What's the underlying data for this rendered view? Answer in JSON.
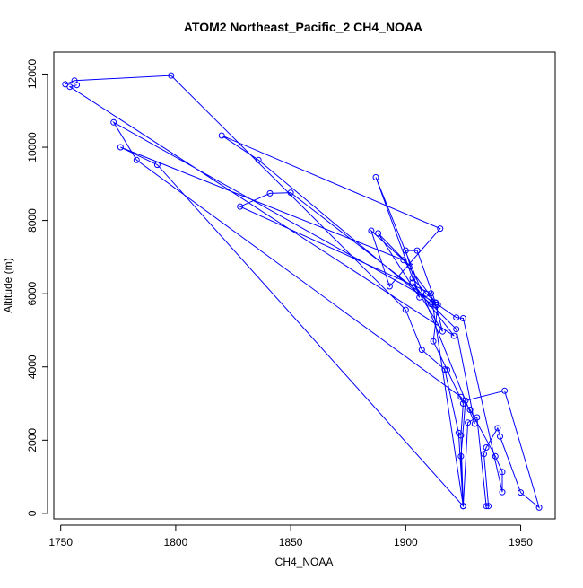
{
  "chart_data": {
    "type": "line",
    "title": "ATOM2 Northeast_Pacific_2 CH4_NOAA",
    "xlabel": "CH4_NOAA",
    "ylabel": "Altitude (m)",
    "xlim": [
      1747,
      1965
    ],
    "ylim": [
      -150,
      12600
    ],
    "x_ticks": [
      1750,
      1800,
      1850,
      1900,
      1950
    ],
    "y_ticks": [
      0,
      2000,
      4000,
      6000,
      8000,
      10000,
      12000
    ],
    "grid": false,
    "legend": "none",
    "series": [
      {
        "color": "#0000ff",
        "marker": "open-circle",
        "points": [
          [
            1752,
            11720
          ],
          [
            1756,
            11820
          ],
          [
            1798,
            11960
          ],
          [
            1900,
            5560
          ],
          [
            1907,
            4470
          ],
          [
            1917,
            3930
          ],
          [
            1923,
            2200
          ],
          [
            1925,
            200
          ],
          [
            1925,
            200
          ],
          [
            1924,
            1560
          ],
          [
            1926,
            3080
          ],
          [
            1943,
            3350
          ],
          [
            1958,
            160
          ],
          [
            1950,
            570
          ],
          [
            1941,
            2100
          ],
          [
            1940,
            2330
          ],
          [
            1935,
            1800
          ],
          [
            1934,
            1620
          ],
          [
            1936,
            200
          ],
          [
            1935,
            200
          ],
          [
            1931,
            2620
          ],
          [
            1927,
            2480
          ],
          [
            1925,
            200
          ],
          [
            1924,
            2130
          ],
          [
            1925,
            3000
          ],
          [
            1918,
            3920
          ],
          [
            1912,
            4700
          ],
          [
            1914,
            5700
          ],
          [
            1922,
            5350
          ],
          [
            1925,
            5330
          ],
          [
            1942,
            580
          ],
          [
            1942,
            1130
          ],
          [
            1939,
            1560
          ],
          [
            1928,
            2830
          ],
          [
            1924,
            3180
          ],
          [
            1783,
            9650
          ],
          [
            1773,
            10680
          ],
          [
            1913,
            5750
          ],
          [
            1905,
            7180
          ],
          [
            1900,
            7180
          ],
          [
            1906,
            5900
          ],
          [
            1888,
            7650
          ],
          [
            1902,
            6750
          ],
          [
            1885,
            7720
          ],
          [
            1893,
            6200
          ],
          [
            1915,
            7780
          ],
          [
            1820,
            10320
          ],
          [
            1836,
            9650
          ],
          [
            1911,
            5720
          ],
          [
            1922,
            5030
          ],
          [
            1930,
            2450
          ],
          [
            1887,
            9180
          ],
          [
            1903,
            6420
          ],
          [
            1909,
            6000
          ],
          [
            1913,
            5760
          ],
          [
            1899,
            6920
          ],
          [
            1776,
            10000
          ],
          [
            1792,
            9520
          ],
          [
            1925,
            200
          ],
          [
            1911,
            6010
          ],
          [
            1828,
            8380
          ],
          [
            1841,
            8740
          ],
          [
            1850,
            8760
          ],
          [
            1913,
            5700
          ],
          [
            1916,
            4970
          ],
          [
            1903,
            6300
          ],
          [
            1921,
            4850
          ],
          [
            1754,
            11650
          ],
          [
            1757,
            11700
          ]
        ]
      }
    ]
  }
}
